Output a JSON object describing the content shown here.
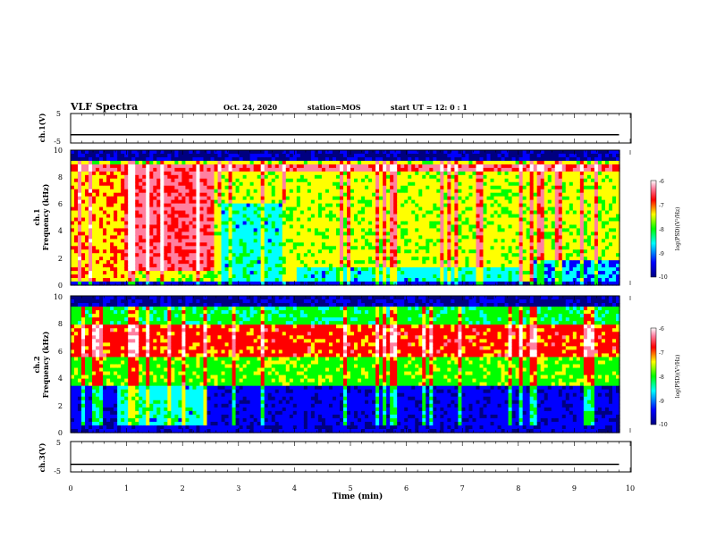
{
  "header": {
    "title": "VLF Spectra",
    "date": "Oct. 24, 2020",
    "station": "station=MOS",
    "start": "start  UT  =    12: 0   : 1"
  },
  "chart_data": [
    {
      "type": "line",
      "panel": "ch1-voltage",
      "ylabel": "ch.1(V)",
      "ylim": [
        -5,
        5
      ],
      "yticks": [
        "5",
        "-5"
      ],
      "x": [
        0,
        9.8
      ],
      "values": [
        -2.2,
        -2.2
      ]
    },
    {
      "type": "heatmap",
      "panel": "ch1-spectrogram",
      "ylabel": "ch.1\nFrequency  (kHz)",
      "ylim": [
        0,
        10
      ],
      "yticks": [
        "0",
        "2",
        "4",
        "6",
        "8",
        "10"
      ],
      "xlim": [
        0,
        9.8
      ],
      "colorbar": {
        "label": "log(PSD)(V²/Hz)",
        "ticks": [
          "-6",
          "-7",
          "-8",
          "-9",
          "-10"
        ],
        "range": [
          -10,
          -6
        ]
      }
    },
    {
      "type": "heatmap",
      "panel": "ch2-spectrogram",
      "ylabel": "ch.2\nFrequency  (kHz)",
      "ylim": [
        0,
        10
      ],
      "yticks": [
        "0",
        "2",
        "4",
        "6",
        "8",
        "10"
      ],
      "xlim": [
        0,
        9.8
      ],
      "colorbar": {
        "label": "log(PSD)(V²/Hz)",
        "ticks": [
          "-6",
          "-7",
          "-8",
          "-9",
          "-10"
        ],
        "range": [
          -10,
          -6
        ]
      }
    },
    {
      "type": "line",
      "panel": "ch3-voltage",
      "ylabel": "ch.3(V)",
      "ylim": [
        -5,
        5
      ],
      "yticks": [
        "5",
        "-5"
      ],
      "x": [
        0,
        9.8
      ],
      "values": [
        -2.5,
        -2.5
      ]
    }
  ],
  "xaxis": {
    "label": "Time  (min)",
    "ticks": [
      "0",
      "1",
      "2",
      "3",
      "4",
      "5",
      "6",
      "7",
      "8",
      "9",
      "10"
    ],
    "range": [
      0,
      10
    ]
  },
  "colors": {
    "colormap": [
      "#000080",
      "#0000ff",
      "#00ffff",
      "#00ff00",
      "#ffff00",
      "#ff0000",
      "#ff80a0",
      "#ffffff"
    ]
  }
}
